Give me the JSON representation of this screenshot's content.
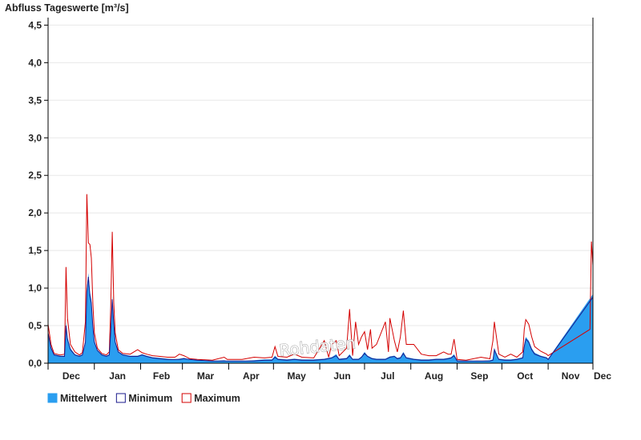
{
  "chart_data": {
    "type": "area",
    "ylabel": "Abfluss Tageswerte [m³/s]",
    "ylim": [
      0,
      4.6
    ],
    "yticks": [
      0,
      0.5,
      1.0,
      1.5,
      2.0,
      2.5,
      3.0,
      3.5,
      4.0,
      4.5
    ],
    "ytick_labels": [
      "0,0",
      "0,5",
      "1,0",
      "1,5",
      "2,0",
      "2,5",
      "3,0",
      "3,5",
      "4,0",
      "4,5"
    ],
    "xlabels": [
      "Dec",
      "Jan",
      "Feb",
      "Mar",
      "Apr",
      "May",
      "Jun",
      "Jul",
      "Aug",
      "Sep",
      "Oct",
      "Nov",
      "Dec"
    ],
    "x_days": 365,
    "grid": true,
    "legend_position": "bottom-left",
    "watermark": "Rohdaten",
    "colors": {
      "mittelwert": "#2a9ef0",
      "minimum": "#1a1a8c",
      "maximum": "#d40000"
    },
    "series": [
      {
        "name": "Mittelwert",
        "key": "mittelwert",
        "points": [
          [
            0,
            0.42
          ],
          [
            2,
            0.22
          ],
          [
            4,
            0.12
          ],
          [
            8,
            0.1
          ],
          [
            11,
            0.1
          ],
          [
            12,
            0.55
          ],
          [
            13,
            0.35
          ],
          [
            15,
            0.2
          ],
          [
            18,
            0.12
          ],
          [
            21,
            0.1
          ],
          [
            23,
            0.12
          ],
          [
            25,
            0.3
          ],
          [
            26,
            1.0
          ],
          [
            27,
            1.2
          ],
          [
            28,
            0.95
          ],
          [
            29,
            0.85
          ],
          [
            30,
            0.5
          ],
          [
            31,
            0.3
          ],
          [
            33,
            0.18
          ],
          [
            36,
            0.12
          ],
          [
            39,
            0.1
          ],
          [
            41,
            0.12
          ],
          [
            42,
            0.45
          ],
          [
            43,
            0.9
          ],
          [
            44,
            0.55
          ],
          [
            45,
            0.3
          ],
          [
            47,
            0.16
          ],
          [
            50,
            0.12
          ],
          [
            55,
            0.1
          ],
          [
            60,
            0.1
          ],
          [
            63,
            0.12
          ],
          [
            66,
            0.1
          ],
          [
            70,
            0.08
          ],
          [
            75,
            0.07
          ],
          [
            80,
            0.06
          ],
          [
            85,
            0.05
          ],
          [
            88,
            0.06
          ],
          [
            91,
            0.07
          ],
          [
            95,
            0.05
          ],
          [
            100,
            0.04
          ],
          [
            110,
            0.03
          ],
          [
            118,
            0.04
          ],
          [
            120,
            0.03
          ],
          [
            130,
            0.03
          ],
          [
            138,
            0.04
          ],
          [
            145,
            0.05
          ],
          [
            150,
            0.05
          ],
          [
            152,
            0.1
          ],
          [
            154,
            0.06
          ],
          [
            160,
            0.05
          ],
          [
            165,
            0.06
          ],
          [
            170,
            0.05
          ],
          [
            178,
            0.05
          ],
          [
            185,
            0.06
          ],
          [
            190,
            0.08
          ],
          [
            193,
            0.12
          ],
          [
            195,
            0.06
          ],
          [
            200,
            0.07
          ],
          [
            202,
            0.12
          ],
          [
            204,
            0.06
          ],
          [
            208,
            0.06
          ],
          [
            210,
            0.09
          ],
          [
            212,
            0.15
          ],
          [
            214,
            0.1
          ],
          [
            217,
            0.07
          ],
          [
            220,
            0.06
          ],
          [
            226,
            0.06
          ],
          [
            229,
            0.09
          ],
          [
            232,
            0.1
          ],
          [
            234,
            0.07
          ],
          [
            236,
            0.08
          ],
          [
            238,
            0.15
          ],
          [
            240,
            0.08
          ],
          [
            245,
            0.06
          ],
          [
            250,
            0.05
          ],
          [
            255,
            0.05
          ],
          [
            260,
            0.06
          ],
          [
            265,
            0.06
          ],
          [
            268,
            0.07
          ],
          [
            270,
            0.08
          ],
          [
            272,
            0.12
          ],
          [
            274,
            0.04
          ],
          [
            280,
            0.03
          ],
          [
            290,
            0.03
          ],
          [
            296,
            0.04
          ],
          [
            298,
            0.05
          ],
          [
            299,
            0.2
          ],
          [
            300,
            0.15
          ],
          [
            302,
            0.06
          ],
          [
            306,
            0.05
          ],
          [
            310,
            0.05
          ],
          [
            314,
            0.06
          ],
          [
            318,
            0.08
          ],
          [
            319,
            0.25
          ],
          [
            320,
            0.35
          ],
          [
            322,
            0.3
          ],
          [
            324,
            0.2
          ],
          [
            326,
            0.14
          ],
          [
            330,
            0.1
          ],
          [
            334,
            0.08
          ],
          [
            335,
            0.06
          ],
          [
            365,
            0.92
          ]
        ]
      },
      {
        "name": "Minimum",
        "key": "minimum",
        "points": [
          [
            0,
            0.4
          ],
          [
            2,
            0.2
          ],
          [
            4,
            0.11
          ],
          [
            8,
            0.09
          ],
          [
            11,
            0.09
          ],
          [
            12,
            0.5
          ],
          [
            13,
            0.32
          ],
          [
            15,
            0.18
          ],
          [
            18,
            0.11
          ],
          [
            21,
            0.09
          ],
          [
            23,
            0.11
          ],
          [
            25,
            0.28
          ],
          [
            26,
            0.95
          ],
          [
            27,
            1.15
          ],
          [
            28,
            0.9
          ],
          [
            29,
            0.8
          ],
          [
            30,
            0.48
          ],
          [
            31,
            0.28
          ],
          [
            33,
            0.17
          ],
          [
            36,
            0.11
          ],
          [
            39,
            0.09
          ],
          [
            41,
            0.11
          ],
          [
            42,
            0.42
          ],
          [
            43,
            0.85
          ],
          [
            44,
            0.52
          ],
          [
            45,
            0.28
          ],
          [
            47,
            0.15
          ],
          [
            50,
            0.11
          ],
          [
            55,
            0.09
          ],
          [
            60,
            0.09
          ],
          [
            63,
            0.11
          ],
          [
            66,
            0.09
          ],
          [
            70,
            0.07
          ],
          [
            75,
            0.06
          ],
          [
            80,
            0.05
          ],
          [
            85,
            0.05
          ],
          [
            88,
            0.05
          ],
          [
            91,
            0.06
          ],
          [
            95,
            0.05
          ],
          [
            100,
            0.04
          ],
          [
            110,
            0.03
          ],
          [
            118,
            0.03
          ],
          [
            120,
            0.03
          ],
          [
            130,
            0.03
          ],
          [
            138,
            0.03
          ],
          [
            145,
            0.04
          ],
          [
            150,
            0.04
          ],
          [
            152,
            0.08
          ],
          [
            154,
            0.05
          ],
          [
            160,
            0.04
          ],
          [
            165,
            0.05
          ],
          [
            170,
            0.04
          ],
          [
            178,
            0.04
          ],
          [
            185,
            0.05
          ],
          [
            190,
            0.07
          ],
          [
            193,
            0.1
          ],
          [
            195,
            0.05
          ],
          [
            200,
            0.06
          ],
          [
            202,
            0.1
          ],
          [
            204,
            0.05
          ],
          [
            208,
            0.05
          ],
          [
            210,
            0.08
          ],
          [
            212,
            0.13
          ],
          [
            214,
            0.09
          ],
          [
            217,
            0.06
          ],
          [
            220,
            0.05
          ],
          [
            226,
            0.05
          ],
          [
            229,
            0.08
          ],
          [
            232,
            0.09
          ],
          [
            234,
            0.06
          ],
          [
            236,
            0.07
          ],
          [
            238,
            0.13
          ],
          [
            240,
            0.07
          ],
          [
            245,
            0.05
          ],
          [
            250,
            0.04
          ],
          [
            255,
            0.04
          ],
          [
            260,
            0.05
          ],
          [
            265,
            0.05
          ],
          [
            268,
            0.06
          ],
          [
            270,
            0.07
          ],
          [
            272,
            0.1
          ],
          [
            274,
            0.03
          ],
          [
            280,
            0.03
          ],
          [
            290,
            0.03
          ],
          [
            296,
            0.03
          ],
          [
            298,
            0.04
          ],
          [
            299,
            0.18
          ],
          [
            300,
            0.13
          ],
          [
            302,
            0.05
          ],
          [
            306,
            0.04
          ],
          [
            310,
            0.04
          ],
          [
            314,
            0.05
          ],
          [
            318,
            0.07
          ],
          [
            319,
            0.22
          ],
          [
            320,
            0.32
          ],
          [
            322,
            0.28
          ],
          [
            324,
            0.18
          ],
          [
            326,
            0.12
          ],
          [
            330,
            0.09
          ],
          [
            334,
            0.07
          ],
          [
            335,
            0.05
          ],
          [
            365,
            0.88
          ]
        ]
      },
      {
        "name": "Maximum",
        "key": "maximum",
        "points": [
          [
            0,
            0.52
          ],
          [
            2,
            0.25
          ],
          [
            4,
            0.13
          ],
          [
            8,
            0.11
          ],
          [
            11,
            0.12
          ],
          [
            12,
            1.28
          ],
          [
            13,
            0.6
          ],
          [
            15,
            0.25
          ],
          [
            18,
            0.15
          ],
          [
            21,
            0.11
          ],
          [
            23,
            0.14
          ],
          [
            25,
            0.55
          ],
          [
            26,
            2.25
          ],
          [
            27,
            1.6
          ],
          [
            28,
            1.58
          ],
          [
            29,
            1.4
          ],
          [
            30,
            0.8
          ],
          [
            31,
            0.4
          ],
          [
            33,
            0.2
          ],
          [
            36,
            0.13
          ],
          [
            39,
            0.11
          ],
          [
            41,
            0.15
          ],
          [
            42,
            0.75
          ],
          [
            43,
            1.75
          ],
          [
            44,
            0.8
          ],
          [
            45,
            0.4
          ],
          [
            47,
            0.18
          ],
          [
            50,
            0.13
          ],
          [
            55,
            0.12
          ],
          [
            60,
            0.18
          ],
          [
            63,
            0.14
          ],
          [
            66,
            0.12
          ],
          [
            70,
            0.1
          ],
          [
            75,
            0.09
          ],
          [
            80,
            0.08
          ],
          [
            85,
            0.08
          ],
          [
            88,
            0.12
          ],
          [
            91,
            0.1
          ],
          [
            95,
            0.06
          ],
          [
            100,
            0.05
          ],
          [
            110,
            0.04
          ],
          [
            118,
            0.08
          ],
          [
            120,
            0.05
          ],
          [
            130,
            0.05
          ],
          [
            138,
            0.08
          ],
          [
            145,
            0.07
          ],
          [
            150,
            0.08
          ],
          [
            152,
            0.22
          ],
          [
            154,
            0.09
          ],
          [
            160,
            0.08
          ],
          [
            165,
            0.12
          ],
          [
            170,
            0.08
          ],
          [
            178,
            0.07
          ],
          [
            185,
            0.3
          ],
          [
            188,
            0.08
          ],
          [
            190,
            0.25
          ],
          [
            193,
            0.3
          ],
          [
            195,
            0.1
          ],
          [
            200,
            0.2
          ],
          [
            202,
            0.72
          ],
          [
            204,
            0.1
          ],
          [
            206,
            0.55
          ],
          [
            208,
            0.25
          ],
          [
            210,
            0.35
          ],
          [
            212,
            0.42
          ],
          [
            214,
            0.18
          ],
          [
            216,
            0.45
          ],
          [
            217,
            0.2
          ],
          [
            220,
            0.25
          ],
          [
            226,
            0.55
          ],
          [
            228,
            0.15
          ],
          [
            229,
            0.6
          ],
          [
            232,
            0.3
          ],
          [
            234,
            0.15
          ],
          [
            236,
            0.35
          ],
          [
            238,
            0.7
          ],
          [
            240,
            0.25
          ],
          [
            245,
            0.25
          ],
          [
            250,
            0.12
          ],
          [
            255,
            0.1
          ],
          [
            260,
            0.1
          ],
          [
            265,
            0.15
          ],
          [
            268,
            0.12
          ],
          [
            270,
            0.12
          ],
          [
            272,
            0.32
          ],
          [
            274,
            0.05
          ],
          [
            280,
            0.04
          ],
          [
            290,
            0.08
          ],
          [
            296,
            0.06
          ],
          [
            298,
            0.3
          ],
          [
            299,
            0.55
          ],
          [
            300,
            0.4
          ],
          [
            302,
            0.12
          ],
          [
            306,
            0.08
          ],
          [
            310,
            0.12
          ],
          [
            314,
            0.08
          ],
          [
            318,
            0.15
          ],
          [
            319,
            0.45
          ],
          [
            320,
            0.58
          ],
          [
            322,
            0.52
          ],
          [
            324,
            0.35
          ],
          [
            326,
            0.22
          ],
          [
            330,
            0.16
          ],
          [
            334,
            0.12
          ],
          [
            335,
            0.1
          ],
          [
            363,
            0.45
          ],
          [
            364,
            1.62
          ],
          [
            365,
            1.3
          ]
        ]
      }
    ]
  }
}
